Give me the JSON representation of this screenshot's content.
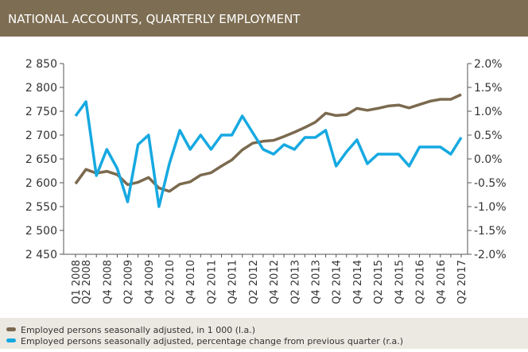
{
  "chart_data": {
    "type": "line",
    "title": "NATIONAL ACCOUNTS, QUARTERLY EMPLOYMENT",
    "categories": [
      "Q1 2008",
      "Q2 2008",
      null,
      "Q4 2008",
      null,
      "Q2 2009",
      null,
      "Q4 2009",
      null,
      "Q2 2010",
      null,
      "Q4 2010",
      null,
      "Q2 2011",
      null,
      "Q4 2011",
      null,
      "Q2 2012",
      null,
      "Q4 2012",
      null,
      "Q2 2013",
      null,
      "Q4 2013",
      null,
      "Q2 2014",
      null,
      "Q4 2014",
      null,
      "Q2 2015",
      null,
      "Q4 2015",
      null,
      "Q2 2016",
      null,
      "Q4 2016",
      null,
      "Q2 2017"
    ],
    "series": [
      {
        "name": "Employed persons seasonally adjusted, in 1 000 (l.a.)",
        "color": "#7b6a4f",
        "values": [
          2598,
          2628,
          2620,
          2624,
          2617,
          2596,
          2601,
          2611,
          2589,
          2582,
          2597,
          2602,
          2616,
          2621,
          2635,
          2648,
          2669,
          2683,
          2687,
          2689,
          2697,
          2706,
          2716,
          2727,
          2746,
          2741,
          2743,
          2756,
          2752,
          2756,
          2761,
          2763,
          2757,
          2764,
          2771,
          2775,
          2775,
          2785
        ]
      },
      {
        "name": "Employed persons seasonally adjusted, percentage change from previous quarter (r.a.)",
        "color": "#16a9e1",
        "axis": "y2",
        "values": [
          0.9,
          1.2,
          -0.35,
          0.2,
          -0.2,
          -0.9,
          0.3,
          0.5,
          -1.0,
          -0.1,
          0.6,
          0.2,
          0.5,
          0.2,
          0.5,
          0.5,
          0.9,
          0.55,
          0.2,
          0.1,
          0.3,
          0.2,
          0.45,
          0.45,
          0.6,
          -0.15,
          0.15,
          0.4,
          -0.1,
          0.1,
          0.1,
          0.1,
          -0.15,
          0.25,
          0.25,
          0.25,
          0.1,
          0.45
        ]
      }
    ],
    "ylim": [
      2450,
      2850
    ],
    "yticks": [
      {
        "value": 2450,
        "label": "2 450"
      },
      {
        "value": 2500,
        "label": "2 500"
      },
      {
        "value": 2550,
        "label": "2 550"
      },
      {
        "value": 2600,
        "label": "2 600"
      },
      {
        "value": 2650,
        "label": "2 650"
      },
      {
        "value": 2700,
        "label": "2 700"
      },
      {
        "value": 2750,
        "label": "2 750"
      },
      {
        "value": 2800,
        "label": "2 800"
      },
      {
        "value": 2850,
        "label": "2 850"
      }
    ],
    "y2lim": [
      -2.0,
      2.0
    ],
    "y2ticks": [
      {
        "value": -2.0,
        "label": "-2.0%"
      },
      {
        "value": -1.5,
        "label": "-1.5%"
      },
      {
        "value": -1.0,
        "label": "-1.0%"
      },
      {
        "value": -0.5,
        "label": "-0.5%"
      },
      {
        "value": 0,
        "label": "0.0%"
      },
      {
        "value": 0.5,
        "label": "0.5%"
      },
      {
        "value": 1.0,
        "label": "1.0%"
      },
      {
        "value": 1.5,
        "label": "1.5%"
      },
      {
        "value": 2.0,
        "label": "2.0%"
      }
    ]
  }
}
